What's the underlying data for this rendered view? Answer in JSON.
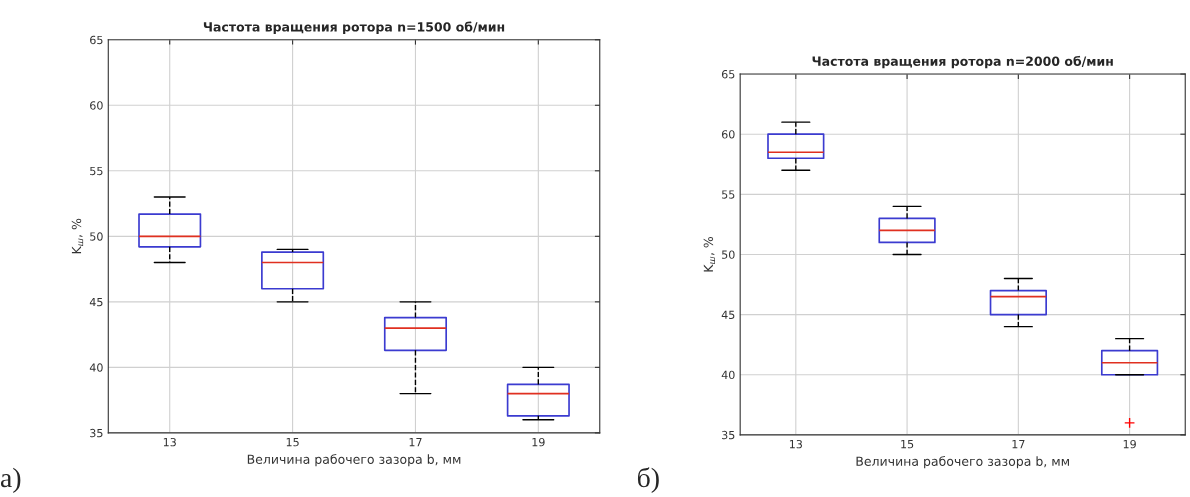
{
  "chart_data": [
    {
      "type": "box",
      "title": "Частота вращения ротора n=1500 об/мин",
      "xlabel": "Величина рабочего зазора b, мм",
      "ylabel": "K$_{ш}$, %",
      "categories": [
        "13",
        "15",
        "17",
        "19"
      ],
      "boxes": [
        {
          "low": 48,
          "q1": 49.2,
          "median": 50,
          "q3": 51.7,
          "high": 53
        },
        {
          "low": 45,
          "q1": 46,
          "median": 48,
          "q3": 48.8,
          "high": 49
        },
        {
          "low": 38,
          "q1": 41.3,
          "median": 43,
          "q3": 43.8,
          "high": 45
        },
        {
          "low": 36,
          "q1": 36.3,
          "median": 38,
          "q3": 38.7,
          "high": 40
        }
      ],
      "color": "#3b3bd0",
      "ylim": [
        35,
        65
      ],
      "yticks": [
        35,
        40,
        45,
        50,
        55,
        60,
        65
      ],
      "grid": true,
      "annotations": [
        "а)"
      ]
    },
    {
      "type": "box",
      "title": "Частота вращения ротора n=2000 об/мин",
      "xlabel": "Величина рабочего зазора b, мм",
      "ylabel": "K$_{ш}$, %",
      "categories": [
        "13",
        "15",
        "17",
        "19"
      ],
      "boxes": [
        {
          "low": 57,
          "q1": 58,
          "median": 58.5,
          "q3": 60,
          "high": 61
        },
        {
          "low": 50,
          "q1": 51,
          "median": 52,
          "q3": 53,
          "high": 54
        },
        {
          "low": 44,
          "q1": 45,
          "median": 46.5,
          "q3": 47,
          "high": 48
        },
        {
          "low": 40,
          "q1": 40,
          "median": 41,
          "q3": 42,
          "high": 43,
          "outliers": [
            36
          ]
        }
      ],
      "color": "#3b3bd0",
      "ylim": [
        35,
        65
      ],
      "yticks": [
        35,
        40,
        45,
        50,
        55,
        60,
        65
      ],
      "grid": true,
      "annotations": [
        "б)"
      ]
    }
  ]
}
